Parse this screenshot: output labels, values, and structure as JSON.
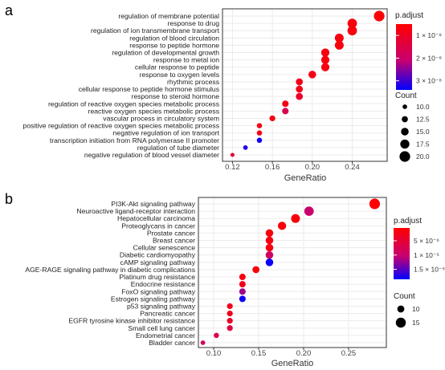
{
  "colors": {
    "low_padj": "#ff0000",
    "high_padj": "#0000ff",
    "panel_border": "#333333",
    "grid": "#ebebeb"
  },
  "chart_data": [
    {
      "type": "scatter",
      "panel_label": "a",
      "xlabel": "GeneRatio",
      "xlim": [
        0.11,
        0.275
      ],
      "xticks": [
        0.12,
        0.16,
        0.2,
        0.24
      ],
      "xtick_labels": [
        "0.12",
        "0.16",
        "0.20",
        "0.24"
      ],
      "legend_color_title": "p.adjust",
      "color_range": [
        5e-09,
        3.4e-08
      ],
      "color_ticks": [
        {
          "value": 1e-08,
          "label": "1 × 10⁻⁸"
        },
        {
          "value": 2e-08,
          "label": "2 × 10⁻⁸"
        },
        {
          "value": 3e-08,
          "label": "3 × 10⁻⁸"
        }
      ],
      "legend_size_title": "Count",
      "size_range": [
        9,
        21
      ],
      "size_ticks": [
        {
          "value": 10.0,
          "label": "10.0"
        },
        {
          "value": 12.5,
          "label": "12.5"
        },
        {
          "value": 15.0,
          "label": "15.0"
        },
        {
          "value": 17.5,
          "label": "17.5"
        },
        {
          "value": 20.0,
          "label": "20.0"
        }
      ],
      "points": [
        {
          "term": "regulation of membrane potential",
          "gene_ratio": 0.267,
          "count": 20,
          "p_adjust": 6e-09
        },
        {
          "term": "response to drug",
          "gene_ratio": 0.24,
          "count": 18,
          "p_adjust": 7e-09
        },
        {
          "term": "regulation of ion transmembrane transport",
          "gene_ratio": 0.24,
          "count": 18,
          "p_adjust": 7e-09
        },
        {
          "term": "regulation of blood circulation",
          "gene_ratio": 0.227,
          "count": 17,
          "p_adjust": 7e-09
        },
        {
          "term": "response to peptide hormone",
          "gene_ratio": 0.227,
          "count": 17,
          "p_adjust": 7e-09
        },
        {
          "term": "regulation of developmental growth",
          "gene_ratio": 0.213,
          "count": 16,
          "p_adjust": 7e-09
        },
        {
          "term": "response to metal ion",
          "gene_ratio": 0.213,
          "count": 16,
          "p_adjust": 7e-09
        },
        {
          "term": "cellular response to peptide",
          "gene_ratio": 0.213,
          "count": 16,
          "p_adjust": 7e-09
        },
        {
          "term": "response to oxygen levels",
          "gene_ratio": 0.2,
          "count": 15,
          "p_adjust": 8e-09
        },
        {
          "term": "rhythmic process",
          "gene_ratio": 0.187,
          "count": 14,
          "p_adjust": 8e-09
        },
        {
          "term": "cellular response to peptide hormone stimulus",
          "gene_ratio": 0.187,
          "count": 14,
          "p_adjust": 8e-09
        },
        {
          "term": "response to steroid hormone",
          "gene_ratio": 0.187,
          "count": 14,
          "p_adjust": 1.1e-08
        },
        {
          "term": "regulation of reactive oxygen species metabolic process",
          "gene_ratio": 0.173,
          "count": 13,
          "p_adjust": 8e-09
        },
        {
          "term": "reactive oxygen species metabolic process",
          "gene_ratio": 0.173,
          "count": 13,
          "p_adjust": 1.6e-08
        },
        {
          "term": "vascular process in circulatory system",
          "gene_ratio": 0.16,
          "count": 12,
          "p_adjust": 8e-09
        },
        {
          "term": "positive regulation of reactive oxygen species metabolic process",
          "gene_ratio": 0.147,
          "count": 11,
          "p_adjust": 8e-09
        },
        {
          "term": "negative regulation of ion transport",
          "gene_ratio": 0.147,
          "count": 11,
          "p_adjust": 8e-09
        },
        {
          "term": "transcription initiation from RNA polymerase II promoter",
          "gene_ratio": 0.147,
          "count": 11,
          "p_adjust": 3.3e-08
        },
        {
          "term": "regulation of tube diameter",
          "gene_ratio": 0.133,
          "count": 10,
          "p_adjust": 3.2e-08
        },
        {
          "term": "negative regulation of blood vessel diameter",
          "gene_ratio": 0.12,
          "count": 9,
          "p_adjust": 1.2e-08
        }
      ]
    },
    {
      "type": "scatter",
      "panel_label": "b",
      "xlabel": "GeneRatio",
      "xlim": [
        0.083,
        0.292
      ],
      "xticks": [
        0.1,
        0.15,
        0.2,
        0.25
      ],
      "xtick_labels": [
        "0.10",
        "0.15",
        "0.20",
        "0.25"
      ],
      "legend_color_title": "p.adjust",
      "color_range": [
        5e-07,
        1.85e-05
      ],
      "color_ticks": [
        {
          "value": 5e-06,
          "label": "5 × 10⁻⁶"
        },
        {
          "value": 1e-05,
          "label": "1 × 10⁻⁵"
        },
        {
          "value": 1.5e-05,
          "label": "1.5 × 10⁻⁵"
        }
      ],
      "legend_size_title": "Count",
      "size_range": [
        5,
        17
      ],
      "size_ticks": [
        {
          "value": 10,
          "label": "10"
        },
        {
          "value": 15,
          "label": "15"
        }
      ],
      "points": [
        {
          "term": "PI3K-Akt signaling pathway",
          "gene_ratio": 0.279,
          "count": 16,
          "p_adjust": 1e-06
        },
        {
          "term": "Neuroactive ligand-receptor interaction",
          "gene_ratio": 0.206,
          "count": 14,
          "p_adjust": 1e-05
        },
        {
          "term": "Hepatocellular carcinoma",
          "gene_ratio": 0.191,
          "count": 13,
          "p_adjust": 1.5e-06
        },
        {
          "term": "Proteoglycans in cancer",
          "gene_ratio": 0.176,
          "count": 12,
          "p_adjust": 1.5e-06
        },
        {
          "term": "Prostate cancer",
          "gene_ratio": 0.162,
          "count": 11,
          "p_adjust": 1.5e-06
        },
        {
          "term": "Breast cancer",
          "gene_ratio": 0.162,
          "count": 11,
          "p_adjust": 2e-06
        },
        {
          "term": "Cellular senescence",
          "gene_ratio": 0.162,
          "count": 11,
          "p_adjust": 2e-06
        },
        {
          "term": "Diabetic cardiomyopathy",
          "gene_ratio": 0.162,
          "count": 11,
          "p_adjust": 9e-06
        },
        {
          "term": "cAMP signaling pathway",
          "gene_ratio": 0.162,
          "count": 11,
          "p_adjust": 1.8e-05
        },
        {
          "term": "AGE-RAGE signaling pathway in diabetic complications",
          "gene_ratio": 0.147,
          "count": 10,
          "p_adjust": 1.5e-06
        },
        {
          "term": "Platinum drug resistance",
          "gene_ratio": 0.132,
          "count": 9,
          "p_adjust": 2e-06
        },
        {
          "term": "Endocrine resistance",
          "gene_ratio": 0.132,
          "count": 9,
          "p_adjust": 3e-06
        },
        {
          "term": "FoxO signaling pathway",
          "gene_ratio": 0.132,
          "count": 9,
          "p_adjust": 1.2e-05
        },
        {
          "term": "Estrogen signaling pathway",
          "gene_ratio": 0.132,
          "count": 9,
          "p_adjust": 1.8e-05
        },
        {
          "term": "p53 signaling pathway",
          "gene_ratio": 0.118,
          "count": 8,
          "p_adjust": 3e-06
        },
        {
          "term": "Pancreatic cancer",
          "gene_ratio": 0.118,
          "count": 8,
          "p_adjust": 3.5e-06
        },
        {
          "term": "EGFR tyrosine kinase inhibitor resistance",
          "gene_ratio": 0.118,
          "count": 8,
          "p_adjust": 4e-06
        },
        {
          "term": "Small cell lung cancer",
          "gene_ratio": 0.118,
          "count": 8,
          "p_adjust": 6e-06
        },
        {
          "term": "Endometrial cancer",
          "gene_ratio": 0.103,
          "count": 7,
          "p_adjust": 7e-06
        },
        {
          "term": "Bladder cancer",
          "gene_ratio": 0.088,
          "count": 6,
          "p_adjust": 9e-06
        }
      ]
    }
  ]
}
